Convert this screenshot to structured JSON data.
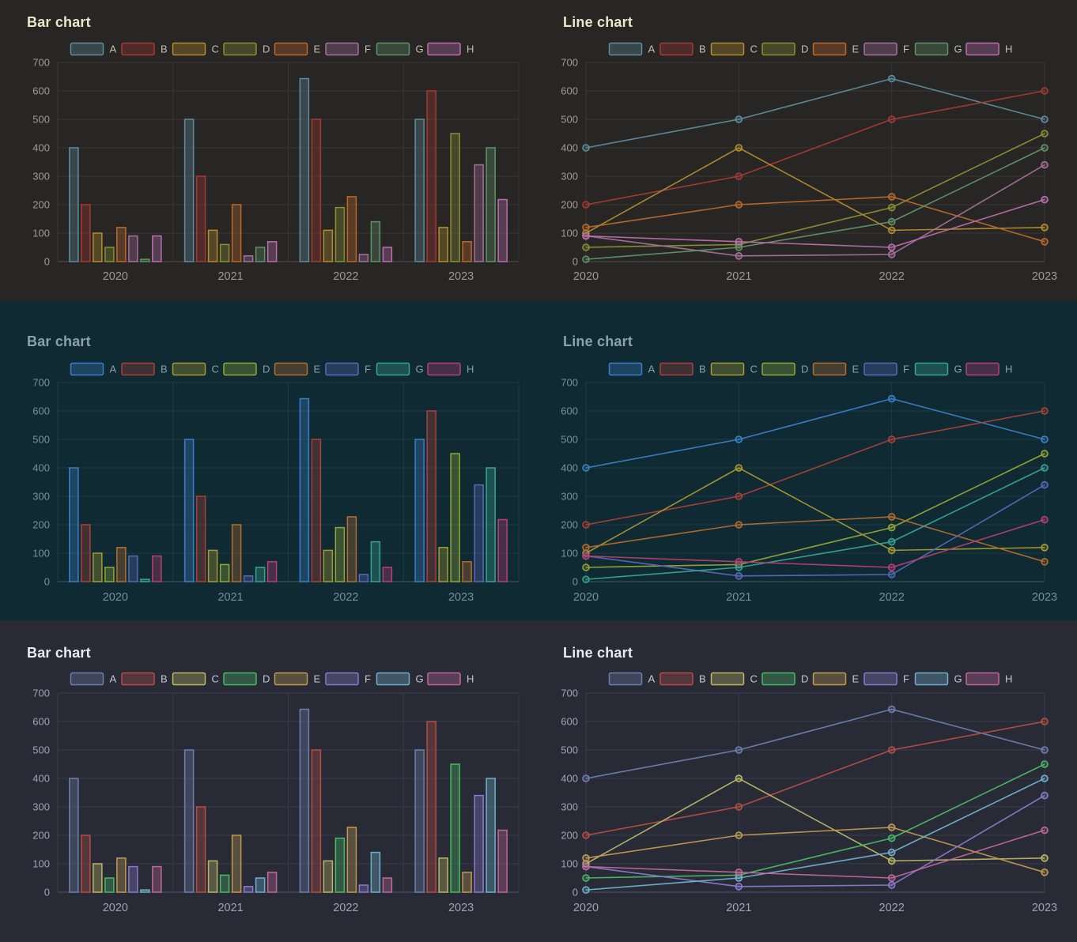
{
  "themes": [
    {
      "name": "dark-earth",
      "background": "#282525",
      "title_color": "#ece7c8",
      "tick_color": "#a19a8c",
      "legend_label_color": "#c5bfb0",
      "grid_color": "#3a3633",
      "axis_color": "#55504a",
      "palette": {
        "A": "#5e8d9c",
        "B": "#a33b32",
        "C": "#b28e2c",
        "D": "#8a9032",
        "E": "#ba6a2a",
        "F": "#a4719c",
        "G": "#5f9367",
        "H": "#bb6fad"
      }
    },
    {
      "name": "dark-teal",
      "background": "#0f2a33",
      "title_color": "#8fa1a8",
      "tick_color": "#76909b",
      "legend_label_color": "#8ba0a8",
      "grid_color": "#1e3c45",
      "axis_color": "#3c5a64",
      "palette": {
        "A": "#3a80c8",
        "B": "#ab4038",
        "C": "#a89a30",
        "D": "#93a735",
        "E": "#b56c2e",
        "F": "#5a68b8",
        "G": "#38a392",
        "H": "#b83f72"
      }
    },
    {
      "name": "dark-navy",
      "background": "#282b36",
      "title_color": "#e8ebf2",
      "tick_color": "#9ba3b8",
      "legend_label_color": "#c2c8d8",
      "grid_color": "#373b4c",
      "axis_color": "#515670",
      "palette": {
        "A": "#6e7fae",
        "B": "#b54e44",
        "C": "#bdb666",
        "D": "#4bb863",
        "E": "#c19a52",
        "F": "#8a7ace",
        "G": "#6fb0cc",
        "H": "#c0689c"
      }
    }
  ],
  "chart_data": [
    {
      "id": "theme1-bar",
      "type": "bar",
      "theme": 0,
      "title": "Bar chart",
      "categories": [
        "2020",
        "2021",
        "2022",
        "2023"
      ],
      "ylim": [
        0,
        700
      ],
      "ytick_step": 100,
      "grid": true,
      "legend_position": "top",
      "series": [
        {
          "name": "A",
          "values": [
            400,
            500,
            643,
            500
          ]
        },
        {
          "name": "B",
          "values": [
            200,
            300,
            500,
            600
          ]
        },
        {
          "name": "C",
          "values": [
            100,
            110,
            110,
            120
          ]
        },
        {
          "name": "D",
          "values": [
            50,
            60,
            190,
            450
          ]
        },
        {
          "name": "E",
          "values": [
            120,
            200,
            228,
            70
          ]
        },
        {
          "name": "F",
          "values": [
            90,
            20,
            25,
            340
          ]
        },
        {
          "name": "G",
          "values": [
            8,
            50,
            140,
            400
          ]
        },
        {
          "name": "H",
          "values": [
            90,
            70,
            50,
            218
          ]
        }
      ]
    },
    {
      "id": "theme1-line",
      "type": "line",
      "theme": 0,
      "title": "Line chart",
      "categories": [
        "2020",
        "2021",
        "2022",
        "2023"
      ],
      "ylim": [
        0,
        700
      ],
      "ytick_step": 100,
      "grid": true,
      "legend_position": "top",
      "series": [
        {
          "name": "A",
          "values": [
            400,
            500,
            643,
            500
          ]
        },
        {
          "name": "B",
          "values": [
            200,
            300,
            500,
            600
          ]
        },
        {
          "name": "C",
          "values": [
            100,
            400,
            110,
            120
          ]
        },
        {
          "name": "D",
          "values": [
            50,
            60,
            190,
            450
          ]
        },
        {
          "name": "E",
          "values": [
            120,
            200,
            228,
            70
          ]
        },
        {
          "name": "F",
          "values": [
            90,
            20,
            25,
            340
          ]
        },
        {
          "name": "G",
          "values": [
            8,
            50,
            140,
            400
          ]
        },
        {
          "name": "H",
          "values": [
            90,
            70,
            50,
            218
          ]
        }
      ]
    },
    {
      "id": "theme2-bar",
      "type": "bar",
      "theme": 1,
      "title": "Bar chart",
      "categories": [
        "2020",
        "2021",
        "2022",
        "2023"
      ],
      "ylim": [
        0,
        700
      ],
      "ytick_step": 100,
      "grid": true,
      "legend_position": "top",
      "series": [
        {
          "name": "A",
          "values": [
            400,
            500,
            643,
            500
          ]
        },
        {
          "name": "B",
          "values": [
            200,
            300,
            500,
            600
          ]
        },
        {
          "name": "C",
          "values": [
            100,
            110,
            110,
            120
          ]
        },
        {
          "name": "D",
          "values": [
            50,
            60,
            190,
            450
          ]
        },
        {
          "name": "E",
          "values": [
            120,
            200,
            228,
            70
          ]
        },
        {
          "name": "F",
          "values": [
            90,
            20,
            25,
            340
          ]
        },
        {
          "name": "G",
          "values": [
            8,
            50,
            140,
            400
          ]
        },
        {
          "name": "H",
          "values": [
            90,
            70,
            50,
            218
          ]
        }
      ]
    },
    {
      "id": "theme2-line",
      "type": "line",
      "theme": 1,
      "title": "Line chart",
      "categories": [
        "2020",
        "2021",
        "2022",
        "2023"
      ],
      "ylim": [
        0,
        700
      ],
      "ytick_step": 100,
      "grid": true,
      "legend_position": "top",
      "series": [
        {
          "name": "A",
          "values": [
            400,
            500,
            643,
            500
          ]
        },
        {
          "name": "B",
          "values": [
            200,
            300,
            500,
            600
          ]
        },
        {
          "name": "C",
          "values": [
            100,
            400,
            110,
            120
          ]
        },
        {
          "name": "D",
          "values": [
            50,
            60,
            190,
            450
          ]
        },
        {
          "name": "E",
          "values": [
            120,
            200,
            228,
            70
          ]
        },
        {
          "name": "F",
          "values": [
            90,
            20,
            25,
            340
          ]
        },
        {
          "name": "G",
          "values": [
            8,
            50,
            140,
            400
          ]
        },
        {
          "name": "H",
          "values": [
            90,
            70,
            50,
            218
          ]
        }
      ]
    },
    {
      "id": "theme3-bar",
      "type": "bar",
      "theme": 2,
      "title": "Bar chart",
      "categories": [
        "2020",
        "2021",
        "2022",
        "2023"
      ],
      "ylim": [
        0,
        700
      ],
      "ytick_step": 100,
      "grid": true,
      "legend_position": "top",
      "series": [
        {
          "name": "A",
          "values": [
            400,
            500,
            643,
            500
          ]
        },
        {
          "name": "B",
          "values": [
            200,
            300,
            500,
            600
          ]
        },
        {
          "name": "C",
          "values": [
            100,
            110,
            110,
            120
          ]
        },
        {
          "name": "D",
          "values": [
            50,
            60,
            190,
            450
          ]
        },
        {
          "name": "E",
          "values": [
            120,
            200,
            228,
            70
          ]
        },
        {
          "name": "F",
          "values": [
            90,
            20,
            25,
            340
          ]
        },
        {
          "name": "G",
          "values": [
            8,
            50,
            140,
            400
          ]
        },
        {
          "name": "H",
          "values": [
            90,
            70,
            50,
            218
          ]
        }
      ]
    },
    {
      "id": "theme3-line",
      "type": "line",
      "theme": 2,
      "title": "Line chart",
      "categories": [
        "2020",
        "2021",
        "2022",
        "2023"
      ],
      "ylim": [
        0,
        700
      ],
      "ytick_step": 100,
      "grid": true,
      "legend_position": "top",
      "series": [
        {
          "name": "A",
          "values": [
            400,
            500,
            643,
            500
          ]
        },
        {
          "name": "B",
          "values": [
            200,
            300,
            500,
            600
          ]
        },
        {
          "name": "C",
          "values": [
            100,
            400,
            110,
            120
          ]
        },
        {
          "name": "D",
          "values": [
            50,
            60,
            190,
            450
          ]
        },
        {
          "name": "E",
          "values": [
            120,
            200,
            228,
            70
          ]
        },
        {
          "name": "F",
          "values": [
            90,
            20,
            25,
            340
          ]
        },
        {
          "name": "G",
          "values": [
            8,
            50,
            140,
            400
          ]
        },
        {
          "name": "H",
          "values": [
            90,
            70,
            50,
            218
          ]
        }
      ]
    }
  ]
}
